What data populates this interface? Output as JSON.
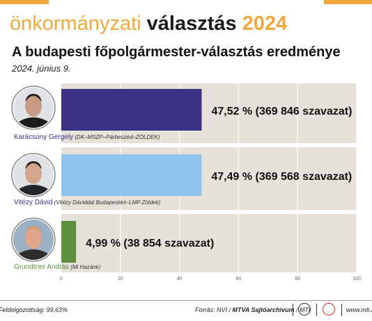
{
  "header": {
    "banner_word1": "önkormányzati",
    "banner_word2": "választás",
    "banner_word3": "2024",
    "title": "A budapesti főpolgármester-választás eredménye",
    "date": "2024. június 9."
  },
  "colors": {
    "accent": "#f2a93b",
    "panel_bg": "#e6e1d9",
    "karacsony": "#3b3287",
    "vitezy": "#8fc5ec",
    "grundtner": "#5b8f3c"
  },
  "chart_data": {
    "type": "bar",
    "orientation": "horizontal",
    "categories": [
      "Karácsony Gergely",
      "Vitézy Dávid",
      "Grundtner András"
    ],
    "parties": [
      "(DK–MSZP–Párbeszéd–ZÖLDEK)",
      "(Vitézy Dáviddal Budapestért–LMP Zöldek)",
      "(Mi Hazánk)"
    ],
    "values": [
      47.52,
      47.49,
      4.99
    ],
    "value_labels": [
      "47,52 % (369 846 szavazat)",
      "47,49 % (369 568 szavazat)",
      "4,99 % (38 854 szavazat)"
    ],
    "bar_colors": [
      "#3b3287",
      "#8fc5ec",
      "#5b8f3c"
    ],
    "xlim": [
      0,
      100
    ],
    "xticks": [
      0,
      20,
      40,
      60,
      80,
      100
    ],
    "xtick_labels": [
      "0",
      "20",
      "40",
      "60",
      "80",
      "100"
    ],
    "grid": true
  },
  "footer": {
    "processing": "Feldolgozottság: 99,63%",
    "source_prefix": "Forrás: NVI / ",
    "source_bold": "MTVA Sajtóarchívum",
    "source_suffix": " / MTI",
    "website": "www.mti.hu"
  }
}
